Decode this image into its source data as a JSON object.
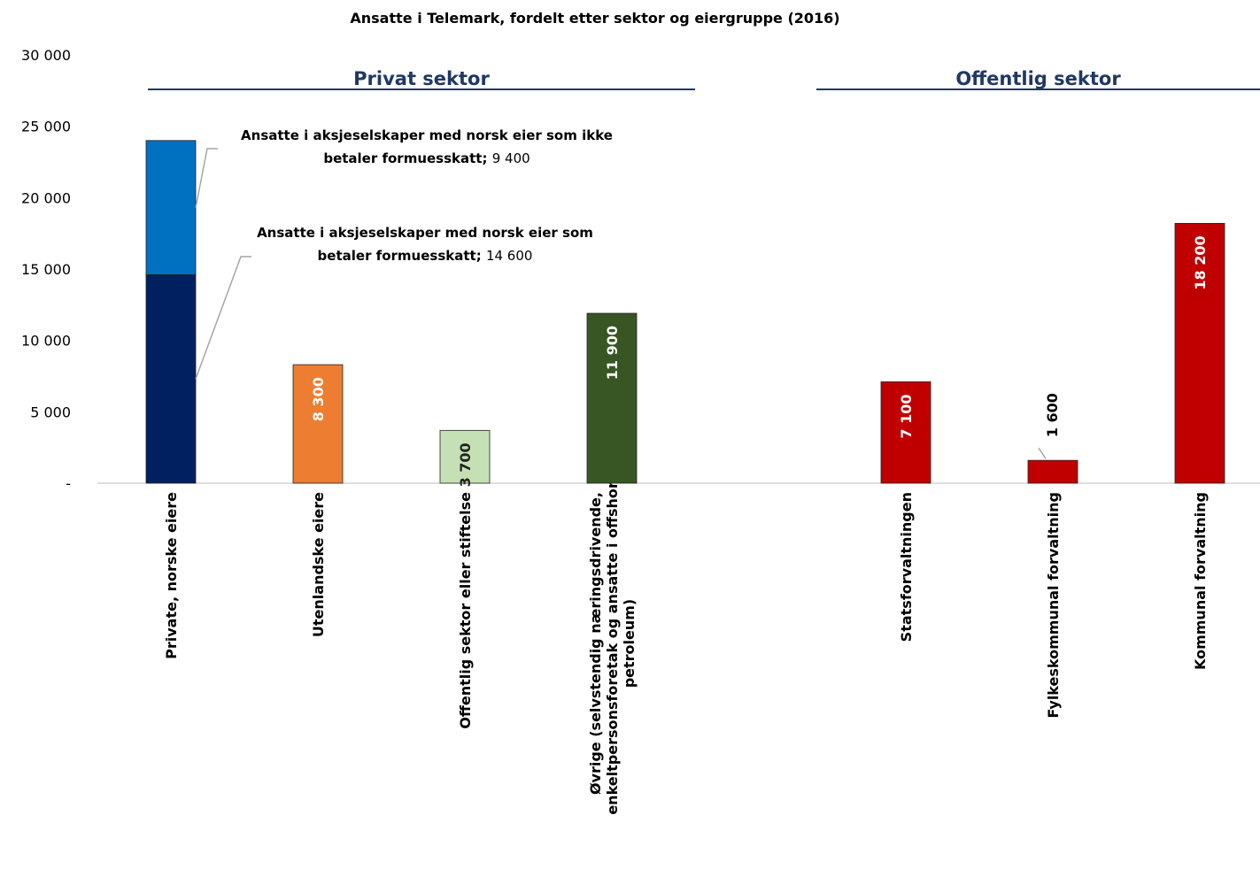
{
  "chart_data": {
    "type": "bar",
    "stacked": true,
    "title": "Ansatte i Telemark, fordelt etter sektor og eiergruppe (2016)",
    "sections": [
      "Privat sektor",
      "Offentlig sektor"
    ],
    "label_separator": ";",
    "categories": [
      "Private, norske eiere",
      "Utenlandske eiere",
      "Offentlig sektor eller stiftelse",
      "Øvrige (selvstendig næringsdrivende, enkeltpersonsforetak og ansatte i offshore petroleum)",
      null,
      "Statsforvaltningen",
      "Fylkeskommunal forvaltning",
      "Kommunal forvaltning"
    ],
    "series": [
      {
        "name": "Ansatte i aksjeselskaper med norsk eier som betaler formuesskatt",
        "color": "#002060",
        "values": [
          14600,
          null,
          null,
          null,
          null,
          null,
          null,
          null
        ],
        "value_labels": [
          "14 600",
          null,
          null,
          null,
          null,
          null,
          null,
          null
        ]
      },
      {
        "name": "Ansatte i aksjeselskaper med norsk eier som ikke betaler formuesskatt",
        "color": "#0070c0",
        "values": [
          9400,
          null,
          null,
          null,
          null,
          null,
          null,
          null
        ],
        "value_labels": [
          "9 400",
          null,
          null,
          null,
          null,
          null,
          null,
          null
        ]
      },
      {
        "colors": [
          null,
          "#ed7d31",
          "#c5e0b4",
          "#375623",
          null,
          "#c00000",
          "#c00000",
          "#c00000"
        ],
        "values": [
          null,
          8300,
          3700,
          11900,
          null,
          7100,
          1600,
          18200
        ],
        "value_labels": [
          null,
          "8 300",
          "3 700",
          "11 900",
          null,
          "7 100",
          "1 600",
          "18 200"
        ]
      }
    ],
    "ylim": [
      0,
      30000
    ],
    "yticks": [
      {
        "value": 0,
        "label": "-"
      },
      {
        "value": 5000,
        "label": "5 000"
      },
      {
        "value": 10000,
        "label": "10 000"
      },
      {
        "value": 15000,
        "label": "15 000"
      },
      {
        "value": 20000,
        "label": "20 000"
      },
      {
        "value": 25000,
        "label": "25 000"
      },
      {
        "value": 30000,
        "label": "30 000"
      }
    ]
  }
}
